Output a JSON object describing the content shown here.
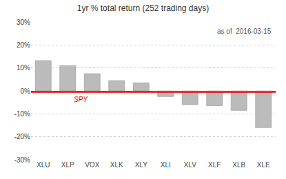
{
  "chart_data": {
    "type": "bar",
    "title": "1yr % total return (252 trading days)",
    "categories": [
      "XLU",
      "XLP",
      "VOX",
      "XLK",
      "XLY",
      "XLI",
      "XLV",
      "XLF",
      "XLB",
      "XLE"
    ],
    "values": [
      13.2,
      11.0,
      7.5,
      4.5,
      3.5,
      -2.5,
      -6.0,
      -6.5,
      -8.5,
      -16.0
    ],
    "color": "#bbbbbb",
    "reference_line": {
      "label": "SPY",
      "value": -0.5,
      "color": "#ff0000"
    },
    "annotations": [
      {
        "text": "as of  2016-03-15"
      }
    ],
    "ylim": [
      -30,
      30
    ],
    "yticks": [
      {
        "value": -30,
        "label": "-30%"
      },
      {
        "value": -20,
        "label": "-20%"
      },
      {
        "value": -10,
        "label": "-10%"
      },
      {
        "value": 0,
        "label": "0%"
      },
      {
        "value": 10,
        "label": "10%"
      },
      {
        "value": 20,
        "label": "20%"
      },
      {
        "value": 30,
        "label": "30%"
      }
    ],
    "grid": true
  }
}
